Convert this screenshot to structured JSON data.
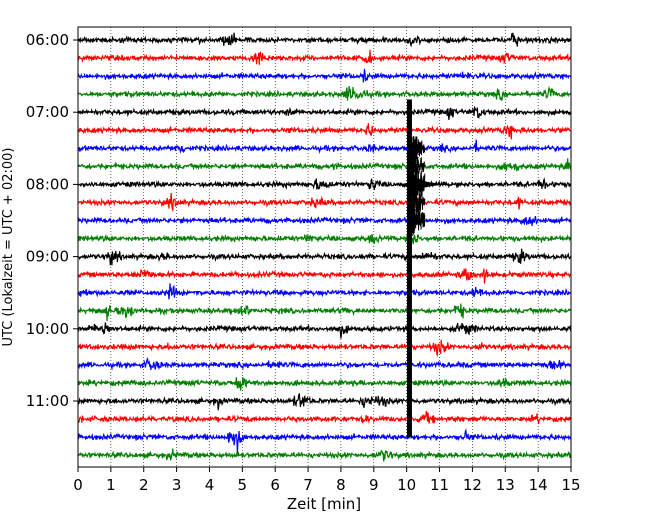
{
  "chart_data": {
    "type": "line",
    "title": "",
    "xlabel": "Zeit  [min]",
    "ylabel": "UTC (Lokalzeit = UTC + 02:00)",
    "xlim": [
      0,
      15
    ],
    "x_ticks": [
      0,
      1,
      2,
      3,
      4,
      5,
      6,
      7,
      8,
      9,
      10,
      11,
      12,
      13,
      14,
      15
    ],
    "x_tick_labels": [
      "0",
      "1",
      "2",
      "3",
      "4",
      "5",
      "6",
      "7",
      "8",
      "9",
      "10",
      "11",
      "12",
      "13",
      "14",
      "15"
    ],
    "y_tick_labels": [
      "06:00",
      "07:00",
      "08:00",
      "09:00",
      "10:00",
      "11:00"
    ],
    "grid": "vertical-dotted",
    "line_colors": [
      "#000000",
      "#ff0000",
      "#0000ff",
      "#008000"
    ],
    "traces": [
      {
        "start": "06:00",
        "color": "#000000"
      },
      {
        "start": "06:15",
        "color": "#ff0000"
      },
      {
        "start": "06:30",
        "color": "#0000ff"
      },
      {
        "start": "06:45",
        "color": "#008000"
      },
      {
        "start": "07:00",
        "color": "#000000"
      },
      {
        "start": "07:15",
        "color": "#ff0000"
      },
      {
        "start": "07:30",
        "color": "#0000ff"
      },
      {
        "start": "07:45",
        "color": "#008000"
      },
      {
        "start": "08:00",
        "color": "#000000"
      },
      {
        "start": "08:15",
        "color": "#ff0000"
      },
      {
        "start": "08:30",
        "color": "#0000ff"
      },
      {
        "start": "08:45",
        "color": "#008000"
      },
      {
        "start": "09:00",
        "color": "#000000"
      },
      {
        "start": "09:15",
        "color": "#ff0000"
      },
      {
        "start": "09:30",
        "color": "#0000ff"
      },
      {
        "start": "09:45",
        "color": "#008000"
      },
      {
        "start": "10:00",
        "color": "#000000"
      },
      {
        "start": "10:15",
        "color": "#ff0000"
      },
      {
        "start": "10:30",
        "color": "#0000ff"
      },
      {
        "start": "10:45",
        "color": "#008000"
      },
      {
        "start": "11:00",
        "color": "#000000"
      },
      {
        "start": "11:15",
        "color": "#ff0000"
      },
      {
        "start": "11:30",
        "color": "#0000ff"
      },
      {
        "start": "11:45",
        "color": "#008000"
      }
    ],
    "event": {
      "start_minute": 10.1,
      "start_trace": "07:15",
      "end_trace": "11:15",
      "peak_trace": "08:00",
      "decay_end_minute": 11.2
    }
  }
}
